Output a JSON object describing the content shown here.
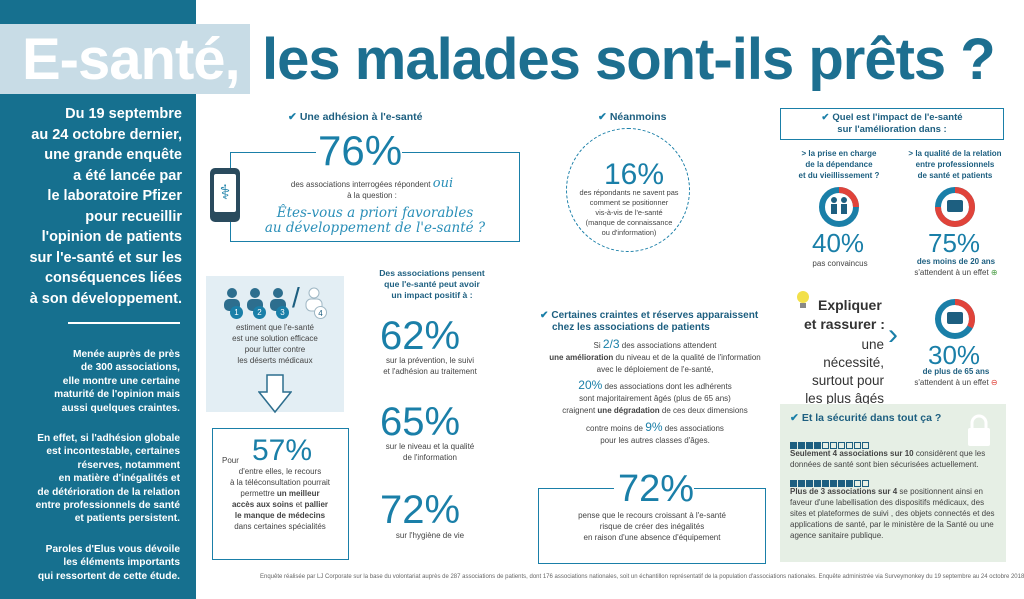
{
  "header": {
    "title_highlight": "E-santé,",
    "title_rest": "les malades sont-ils prêts ?"
  },
  "sidebar": {
    "intro_lines": [
      "Du 19 septembre",
      "au 24 octobre dernier,",
      "une grande enquête",
      "a été lancée par",
      "le laboratoire Pfizer",
      "pour recueillir",
      "l'opinion de patients",
      "sur l'e-santé et sur les",
      "conséquences liées",
      "à son développement."
    ],
    "para1_lines": [
      "Menée auprès de près",
      "de 300 associations,",
      "elle montre une certaine",
      "maturité de l'opinion mais",
      "aussi quelques craintes."
    ],
    "para2_lines": [
      "En effet, si l'adhésion globale",
      "est incontestable, certaines",
      "réserves, notamment",
      "en matière d'inégalités et",
      "de détérioration de la relation",
      "entre professionnels de santé",
      "et patients persistent."
    ],
    "para3_lines": [
      "Paroles d'Elus vous dévoile",
      "les éléments importants",
      "qui ressortent de cette étude."
    ]
  },
  "adhesion": {
    "heading": "Une adhésion à l'e-santé",
    "percent": "76%",
    "text_line1": "des associations interrogées répondent",
    "oui": "oui",
    "text_line2": "à la question :",
    "question_line1": "Êtes-vous a priori favorables",
    "question_line2": "au développement de l'e-santé ?"
  },
  "deserts": {
    "icon_numbers": [
      "1",
      "2",
      "3",
      "4"
    ],
    "slash": "/",
    "text_lines": [
      "estiment que l'e-santé",
      "est une solution efficace",
      "pour lutter contre",
      "les déserts médicaux"
    ]
  },
  "teleconsult": {
    "pour": "Pour",
    "percent": "57%",
    "lines": [
      "d'entre elles, le recours",
      "à la téléconsultation pourrait",
      "permettre"
    ],
    "bold1": "un meilleur",
    "bold2": "accès aux soins",
    "and": "et",
    "bold3": "pallier",
    "bold4": "le manque de médecins",
    "last": "dans certaines spécialités"
  },
  "positive": {
    "heading_lines": [
      "Des associations pensent",
      "que l'e-santé peut avoir",
      "un impact positif à :"
    ],
    "items": [
      {
        "percent": "62%",
        "lines": [
          "sur la prévention, le suivi",
          "et l'adhésion au traitement"
        ]
      },
      {
        "percent": "65%",
        "lines": [
          "sur le niveau et la qualité",
          "de l'information"
        ]
      },
      {
        "percent": "72%",
        "lines": [
          "sur l'hygiène de vie"
        ]
      }
    ]
  },
  "neanmoins": {
    "heading": "Néanmoins",
    "percent": "16%",
    "lines": [
      "des répondants ne savent pas",
      "comment se positionner",
      "vis-à-vis de l'e-santé",
      "(manque de connaissance",
      "ou d'information)"
    ]
  },
  "craintes": {
    "heading_line1": "Certaines craintes et réserves apparaissent",
    "heading_line2": "chez les associations de patients",
    "s_prefix": "Si",
    "s_frac": "2/3",
    "s_text": "des associations attendent",
    "s_bold": "une amélioration",
    "s_text2": "du niveau et de la qualité de l'information",
    "s_text3": "avec le déploiement de l'e-santé,",
    "p20": "20%",
    "p20_text1": "des associations dont les adhérents",
    "p20_text2": "sont majoritairement âgés (plus de 65 ans)",
    "p20_text3": "craignent",
    "p20_bold": "une dégradation",
    "p20_text4": "de ces deux dimensions",
    "p9_prefix": "contre moins de",
    "p9": "9%",
    "p9_text": "des associations",
    "p9_text2": "pour les autres classes d'âges."
  },
  "inequalities": {
    "percent": "72%",
    "lines": [
      "pense que le recours croissant à l'e-santé",
      "risque de créer des inégalités",
      "en raison d'une absence d'équipement"
    ]
  },
  "impact": {
    "heading_line1": "Quel est l'impact de l'e-santé",
    "heading_line2": "sur l'amélioration dans :",
    "left_label": [
      "> la prise en charge",
      "de la dépendance",
      "et du vieillissement ?"
    ],
    "right_label": [
      "> la qualité de la relation",
      "entre professionnels",
      "de santé et patients"
    ],
    "p40": "40%",
    "p40_text": "pas convaincus",
    "p75": "75%",
    "p75_bold": "des moins de 20 ans",
    "p75_text": "s'attendent à un effet",
    "p30": "30%",
    "p30_bold": "de plus de 65 ans",
    "p30_text": "s'attendent à un effet",
    "explain_lines": [
      "Expliquer",
      "et rassurer :"
    ],
    "explain_rest": [
      "une nécessité,",
      "surtout pour",
      "les plus âgés"
    ]
  },
  "securite": {
    "heading": "Et la sécurité dans tout ça ?",
    "bold1": "Seulement 4 associations sur 10",
    "text1a": "considèrent que les",
    "text1b": "données de santé sont bien sécurisées actuellement.",
    "bold2": "Plus de 3 associations sur 4",
    "text2a": "se positionnent ainsi en",
    "text2_lines": [
      "faveur d'une labellisation des dispositifs médicaux, des",
      "sites et plateformes de suivi , des objets connectés et des",
      "applications de santé, par le ministère de la Santé ou une",
      "agence sanitaire publique."
    ],
    "filled1": 4,
    "filled2": 8,
    "total": 10
  },
  "footnote": "Enquête réalisée par LJ Corporate sur la base du volontariat auprès de 287 associations de patients, dont 176 associations nationales, soit un échantillon représentatif de la population d'associations nationales. Enquête administrée via Surveymonkey du 19 septembre au 24 octobre 2018",
  "colors": {
    "primary": "#1a7fa8",
    "sidebar": "#16708f",
    "dark": "#1d5f80",
    "accent_red": "#e0433a",
    "accent_green": "#4fa04a",
    "security_bg": "#e6efe5"
  }
}
